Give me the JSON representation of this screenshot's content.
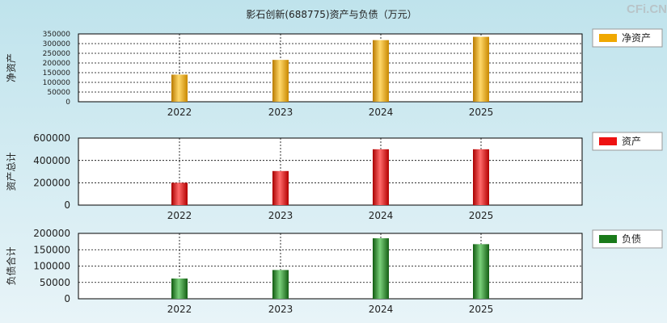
{
  "title": "影石创新(688775)资产与负债（万元）",
  "watermark": "CFi.CN",
  "chart_data": [
    {
      "type": "bar",
      "ylabel": "净资产",
      "legend": "净资产",
      "color": "#f0a800",
      "categories": [
        "2022",
        "2023",
        "2024",
        "2025"
      ],
      "values": [
        140000,
        216000,
        318000,
        335000
      ],
      "ylim": [
        0,
        350000
      ],
      "yticks": [
        "0",
        "50000",
        "100000",
        "150000",
        "200000",
        "250000",
        "300000",
        "350000"
      ],
      "ytick_values": [
        0,
        50000,
        100000,
        150000,
        200000,
        250000,
        300000,
        350000
      ],
      "grid": true
    },
    {
      "type": "bar",
      "ylabel": "资产总计",
      "legend": "资产",
      "color": "#ee1111",
      "categories": [
        "2022",
        "2023",
        "2024",
        "2025"
      ],
      "values": [
        200000,
        305000,
        500000,
        500000
      ],
      "ylim": [
        0,
        600000
      ],
      "yticks": [
        "0",
        "200000",
        "400000",
        "600000"
      ],
      "ytick_values": [
        0,
        200000,
        400000,
        600000
      ],
      "grid": true
    },
    {
      "type": "bar",
      "ylabel": "负债合计",
      "legend": "负债",
      "color": "#1a7a1a",
      "categories": [
        "2022",
        "2023",
        "2024",
        "2025"
      ],
      "values": [
        62000,
        88000,
        185000,
        167000
      ],
      "ylim": [
        0,
        200000
      ],
      "yticks": [
        "0",
        "50000",
        "100000",
        "150000",
        "200000"
      ],
      "ytick_values": [
        0,
        50000,
        100000,
        150000,
        200000
      ],
      "grid": true
    }
  ]
}
